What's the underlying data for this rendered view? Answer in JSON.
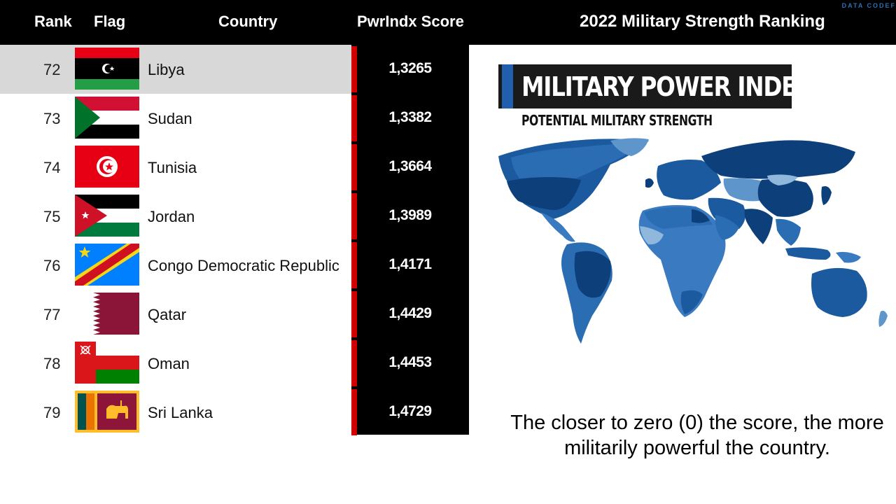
{
  "header": {
    "rank_label": "Rank",
    "flag_label": "Flag",
    "country_label": "Country",
    "score_label": "PwrIndx Score",
    "title": "2022 Military Strength Ranking",
    "watermark": "DATA CODEF"
  },
  "rows": [
    {
      "rank": "72",
      "country": "Libya",
      "score": "1,3265",
      "flag": "libya-flag",
      "highlighted": true
    },
    {
      "rank": "73",
      "country": "Sudan",
      "score": "1,3382",
      "flag": "sudan-flag"
    },
    {
      "rank": "74",
      "country": "Tunisia",
      "score": "1,3664",
      "flag": "tunisia-flag"
    },
    {
      "rank": "75",
      "country": "Jordan",
      "score": "1,3989",
      "flag": "jordan-flag"
    },
    {
      "rank": "76",
      "country": "Congo Democratic Republic",
      "score": "1,4171",
      "flag": "drc-flag"
    },
    {
      "rank": "77",
      "country": "Qatar",
      "score": "1,4429",
      "flag": "qatar-flag"
    },
    {
      "rank": "78",
      "country": "Oman",
      "score": "1,4453",
      "flag": "oman-flag"
    },
    {
      "rank": "79",
      "country": "Sri Lanka",
      "score": "1,4729",
      "flag": "sri-lanka-flag"
    }
  ],
  "panel": {
    "heading": "MILITARY POWER INDEX",
    "subheading": "POTENTIAL MILITARY STRENGTH",
    "map": "world-choropleth-map",
    "note": "The closer to zero (0) the score, the more militarily powerful the country."
  },
  "colors": {
    "header_bg": "#000000",
    "score_bg": "#000000",
    "score_bar": "#d00000",
    "highlight_row": "#d8d8d8",
    "map_dark": "#0d3f7a",
    "map_light": "#8fb8dc",
    "accent": "#1f5fae"
  }
}
